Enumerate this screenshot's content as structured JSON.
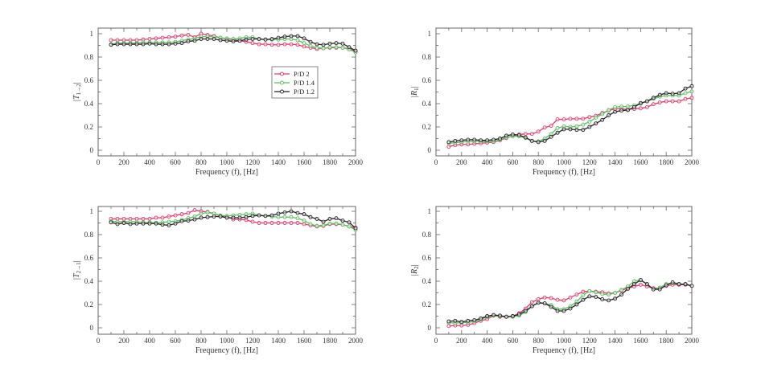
{
  "chart_data": [
    {
      "type": "line",
      "ylabel": {
        "prefix": "|T",
        "sub": "1→2",
        "suffix": "|"
      },
      "xlabel": "Frequency (f), [Hz]",
      "xlim": [
        0,
        2000
      ],
      "ylim": [
        0,
        1
      ],
      "xticks": [
        "0",
        "200",
        "400",
        "600",
        "800",
        "1000",
        "1200",
        "1400",
        "1600",
        "1800",
        "2000"
      ],
      "yticks": [
        "0",
        "0.2",
        "0.4",
        "0.6",
        "0.8",
        "1"
      ],
      "legend": "center-right",
      "show_legend": true,
      "series": [
        {
          "name": "P/D 2",
          "color": "#e23a6e",
          "values": [
            0.945,
            0.945,
            0.945,
            0.945,
            0.945,
            0.95,
            0.955,
            0.96,
            0.965,
            0.97,
            0.975,
            0.985,
            0.99,
            0.97,
            1.0,
            0.99,
            0.98,
            0.965,
            0.955,
            0.95,
            0.94,
            0.93,
            0.92,
            0.91,
            0.91,
            0.905,
            0.905,
            0.91,
            0.91,
            0.905,
            0.89,
            0.88,
            0.87,
            0.875,
            0.88,
            0.88,
            0.88,
            0.87,
            0.85
          ]
        },
        {
          "name": "P/D 1.4",
          "color": "#5cbd62",
          "values": [
            0.91,
            0.92,
            0.92,
            0.92,
            0.92,
            0.925,
            0.925,
            0.925,
            0.925,
            0.925,
            0.93,
            0.94,
            0.95,
            0.96,
            0.975,
            0.975,
            0.975,
            0.965,
            0.96,
            0.955,
            0.96,
            0.97,
            0.97,
            0.955,
            0.95,
            0.95,
            0.95,
            0.955,
            0.955,
            0.945,
            0.92,
            0.895,
            0.88,
            0.875,
            0.885,
            0.885,
            0.88,
            0.865,
            0.84
          ]
        },
        {
          "name": "P/D 1.2",
          "color": "#222222",
          "values": [
            0.905,
            0.91,
            0.91,
            0.91,
            0.91,
            0.91,
            0.915,
            0.91,
            0.91,
            0.91,
            0.915,
            0.92,
            0.935,
            0.94,
            0.955,
            0.955,
            0.955,
            0.945,
            0.94,
            0.935,
            0.94,
            0.95,
            0.955,
            0.955,
            0.95,
            0.955,
            0.965,
            0.975,
            0.98,
            0.98,
            0.96,
            0.93,
            0.91,
            0.905,
            0.915,
            0.92,
            0.915,
            0.885,
            0.855
          ]
        }
      ]
    },
    {
      "type": "line",
      "ylabel": {
        "prefix": "|R",
        "sub": "1",
        "suffix": "|"
      },
      "xlabel": "Frequency (f), [Hz]",
      "xlim": [
        0,
        2000
      ],
      "ylim": [
        0,
        1
      ],
      "xticks": [
        "0",
        "200",
        "400",
        "600",
        "800",
        "1000",
        "1200",
        "1400",
        "1600",
        "1800",
        "2000"
      ],
      "yticks": [
        "0",
        "0.2",
        "0.4",
        "0.6",
        "0.8",
        "1"
      ],
      "show_legend": false,
      "series": [
        {
          "name": "P/D 2",
          "color": "#e23a6e",
          "values": [
            0.03,
            0.045,
            0.05,
            0.05,
            0.055,
            0.06,
            0.065,
            0.07,
            0.085,
            0.105,
            0.125,
            0.135,
            0.14,
            0.14,
            0.16,
            0.195,
            0.21,
            0.265,
            0.265,
            0.27,
            0.27,
            0.27,
            0.285,
            0.295,
            0.32,
            0.34,
            0.355,
            0.355,
            0.35,
            0.355,
            0.36,
            0.37,
            0.395,
            0.41,
            0.42,
            0.42,
            0.42,
            0.44,
            0.45
          ]
        },
        {
          "name": "P/D 1.4",
          "color": "#5cbd62",
          "values": [
            0.06,
            0.065,
            0.07,
            0.075,
            0.075,
            0.075,
            0.075,
            0.075,
            0.09,
            0.11,
            0.12,
            0.12,
            0.105,
            0.08,
            0.075,
            0.1,
            0.14,
            0.19,
            0.205,
            0.2,
            0.205,
            0.22,
            0.245,
            0.28,
            0.31,
            0.345,
            0.37,
            0.375,
            0.375,
            0.385,
            0.4,
            0.42,
            0.44,
            0.46,
            0.47,
            0.47,
            0.47,
            0.49,
            0.505
          ]
        },
        {
          "name": "P/D 1.2",
          "color": "#222222",
          "values": [
            0.07,
            0.08,
            0.085,
            0.09,
            0.09,
            0.085,
            0.085,
            0.09,
            0.1,
            0.125,
            0.135,
            0.13,
            0.11,
            0.08,
            0.07,
            0.08,
            0.115,
            0.15,
            0.18,
            0.18,
            0.175,
            0.175,
            0.2,
            0.23,
            0.26,
            0.3,
            0.33,
            0.34,
            0.345,
            0.37,
            0.405,
            0.42,
            0.45,
            0.475,
            0.49,
            0.485,
            0.49,
            0.53,
            0.55
          ]
        }
      ]
    },
    {
      "type": "line",
      "ylabel": {
        "prefix": "|T",
        "sub": "2→1",
        "suffix": "|"
      },
      "xlabel": "Frequency (f), [Hz]",
      "xlim": [
        0,
        2000
      ],
      "ylim": [
        0,
        1
      ],
      "xticks": [
        "0",
        "200",
        "400",
        "600",
        "800",
        "1000",
        "1200",
        "1400",
        "1600",
        "1800",
        "2000"
      ],
      "yticks": [
        "0",
        "0.2",
        "0.4",
        "0.6",
        "0.8",
        "1"
      ],
      "show_legend": false,
      "series": [
        {
          "name": "P/D 2",
          "color": "#e23a6e",
          "values": [
            0.935,
            0.935,
            0.935,
            0.935,
            0.935,
            0.935,
            0.935,
            0.945,
            0.945,
            0.955,
            0.965,
            0.975,
            0.985,
            1.01,
            1.0,
            0.995,
            0.98,
            0.96,
            0.955,
            0.93,
            0.93,
            0.925,
            0.91,
            0.9,
            0.9,
            0.9,
            0.9,
            0.9,
            0.9,
            0.9,
            0.89,
            0.88,
            0.87,
            0.875,
            0.89,
            0.89,
            0.885,
            0.87,
            0.86
          ]
        },
        {
          "name": "P/D 1.4",
          "color": "#5cbd62",
          "values": [
            0.915,
            0.91,
            0.91,
            0.91,
            0.91,
            0.905,
            0.905,
            0.9,
            0.905,
            0.91,
            0.915,
            0.925,
            0.94,
            0.955,
            0.98,
            0.99,
            0.98,
            0.965,
            0.96,
            0.965,
            0.97,
            0.975,
            0.98,
            0.965,
            0.96,
            0.955,
            0.95,
            0.95,
            0.95,
            0.94,
            0.92,
            0.89,
            0.875,
            0.88,
            0.895,
            0.895,
            0.885,
            0.87,
            0.84
          ]
        },
        {
          "name": "P/D 1.2",
          "color": "#222222",
          "values": [
            0.905,
            0.89,
            0.9,
            0.89,
            0.895,
            0.895,
            0.895,
            0.895,
            0.885,
            0.88,
            0.895,
            0.915,
            0.92,
            0.93,
            0.945,
            0.95,
            0.955,
            0.955,
            0.945,
            0.945,
            0.945,
            0.95,
            0.96,
            0.965,
            0.96,
            0.965,
            0.98,
            0.99,
            1.0,
            0.985,
            0.975,
            0.95,
            0.935,
            0.91,
            0.935,
            0.94,
            0.92,
            0.905,
            0.855
          ]
        }
      ]
    },
    {
      "type": "line",
      "ylabel": {
        "prefix": "|R",
        "sub": "2",
        "suffix": "|"
      },
      "xlabel": "Frequency (f), [Hz]",
      "xlim": [
        0,
        2000
      ],
      "ylim": [
        0,
        1
      ],
      "xticks": [
        "0",
        "200",
        "400",
        "600",
        "800",
        "1000",
        "1200",
        "1400",
        "1600",
        "1800",
        "2000"
      ],
      "yticks": [
        "0",
        "0.2",
        "0.4",
        "0.6",
        "0.8",
        "1"
      ],
      "show_legend": false,
      "series": [
        {
          "name": "P/D 2",
          "color": "#e23a6e",
          "values": [
            0.015,
            0.02,
            0.02,
            0.025,
            0.04,
            0.06,
            0.075,
            0.105,
            0.095,
            0.095,
            0.1,
            0.125,
            0.165,
            0.22,
            0.245,
            0.26,
            0.255,
            0.24,
            0.235,
            0.26,
            0.285,
            0.31,
            0.315,
            0.31,
            0.305,
            0.295,
            0.3,
            0.32,
            0.34,
            0.355,
            0.37,
            0.355,
            0.34,
            0.34,
            0.36,
            0.37,
            0.37,
            0.37,
            0.36
          ]
        },
        {
          "name": "P/D 1.4",
          "color": "#5cbd62",
          "values": [
            0.045,
            0.04,
            0.045,
            0.045,
            0.055,
            0.07,
            0.095,
            0.105,
            0.1,
            0.095,
            0.095,
            0.105,
            0.135,
            0.185,
            0.215,
            0.21,
            0.195,
            0.16,
            0.16,
            0.185,
            0.225,
            0.28,
            0.315,
            0.305,
            0.29,
            0.285,
            0.3,
            0.325,
            0.355,
            0.4,
            0.41,
            0.375,
            0.33,
            0.345,
            0.375,
            0.385,
            0.375,
            0.375,
            0.36
          ]
        },
        {
          "name": "P/D 1.2",
          "color": "#222222",
          "values": [
            0.055,
            0.06,
            0.05,
            0.06,
            0.065,
            0.08,
            0.1,
            0.11,
            0.105,
            0.095,
            0.1,
            0.115,
            0.145,
            0.185,
            0.215,
            0.21,
            0.18,
            0.145,
            0.145,
            0.165,
            0.2,
            0.24,
            0.27,
            0.265,
            0.245,
            0.235,
            0.25,
            0.285,
            0.335,
            0.375,
            0.41,
            0.375,
            0.33,
            0.33,
            0.365,
            0.39,
            0.375,
            0.375,
            0.36
          ]
        }
      ]
    }
  ],
  "x_values": {
    "start": 100,
    "step": 50,
    "count": 39
  }
}
